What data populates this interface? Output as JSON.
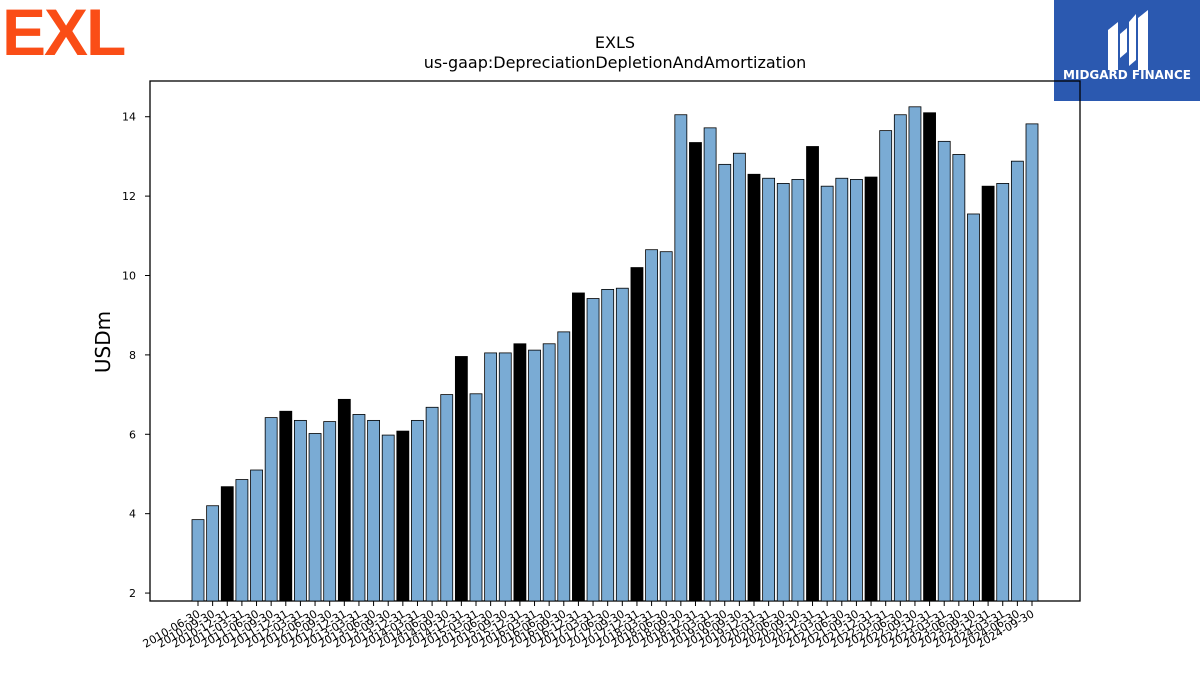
{
  "brand": {
    "left_logo_text": "EXL",
    "left_logo_color": "#fa4d16",
    "right_logo_text": "MIDGARD FINANCE",
    "right_logo_bg": "#2b59b0"
  },
  "chart_data": {
    "type": "bar",
    "title": "EXLS",
    "subtitle": "us-gaap:DepreciationDepletionAndAmortization",
    "xlabel": "",
    "ylabel": "USDm",
    "ylim": [
      1.8,
      14.9
    ],
    "yticks": [
      2,
      4,
      6,
      8,
      10,
      12,
      14
    ],
    "grid": false,
    "colors": {
      "quarter": "#7aabd4",
      "fiscal_year_end": "#000000"
    },
    "categories": [
      "2010-06-30",
      "2010-09-30",
      "2010-12-31",
      "2011-03-31",
      "2011-06-30",
      "2011-09-30",
      "2011-12-31",
      "2012-03-31",
      "2012-06-30",
      "2012-09-30",
      "2012-12-31",
      "2013-03-31",
      "2013-06-30",
      "2013-09-30",
      "2013-12-31",
      "2014-03-31",
      "2014-06-30",
      "2014-09-30",
      "2014-12-31",
      "2015-03-31",
      "2015-06-30",
      "2015-09-30",
      "2015-12-31",
      "2016-03-31",
      "2016-06-30",
      "2016-09-30",
      "2016-12-31",
      "2017-03-31",
      "2017-06-30",
      "2017-09-30",
      "2017-12-31",
      "2018-03-31",
      "2018-06-30",
      "2018-09-30",
      "2018-12-31",
      "2019-03-31",
      "2019-06-30",
      "2019-09-30",
      "2019-12-31",
      "2020-03-31",
      "2020-06-30",
      "2020-09-30",
      "2020-12-31",
      "2021-03-31",
      "2021-06-30",
      "2021-09-30",
      "2021-12-31",
      "2022-03-31",
      "2022-06-30",
      "2022-09-30",
      "2022-12-31",
      "2023-03-31",
      "2023-06-30",
      "2023-09-30",
      "2023-12-31",
      "2024-03-31",
      "2024-06-30",
      "2024-09-30"
    ],
    "values": [
      3.85,
      4.2,
      4.68,
      4.86,
      5.1,
      6.42,
      6.58,
      6.35,
      6.02,
      6.32,
      6.88,
      6.5,
      6.35,
      5.98,
      6.08,
      6.35,
      6.68,
      7.0,
      7.96,
      7.02,
      8.05,
      8.05,
      8.28,
      8.12,
      8.28,
      8.58,
      9.56,
      9.42,
      9.65,
      9.68,
      10.2,
      10.65,
      10.6,
      14.05,
      13.35,
      13.72,
      12.8,
      13.08,
      12.55,
      12.45,
      12.32,
      12.42,
      13.25,
      12.25,
      12.45,
      12.42,
      12.48,
      13.65,
      14.05,
      14.25,
      14.1,
      13.38,
      13.05,
      11.55,
      12.25,
      12.32,
      12.88,
      13.82
    ],
    "fiscal_year_end": [
      false,
      false,
      true,
      false,
      false,
      false,
      true,
      false,
      false,
      false,
      true,
      false,
      false,
      false,
      true,
      false,
      false,
      false,
      true,
      false,
      false,
      false,
      true,
      false,
      false,
      false,
      true,
      false,
      false,
      false,
      true,
      false,
      false,
      false,
      true,
      false,
      false,
      false,
      true,
      false,
      false,
      false,
      true,
      false,
      false,
      false,
      true,
      false,
      false,
      false,
      true,
      false,
      false,
      false,
      true,
      false,
      false,
      false
    ]
  }
}
